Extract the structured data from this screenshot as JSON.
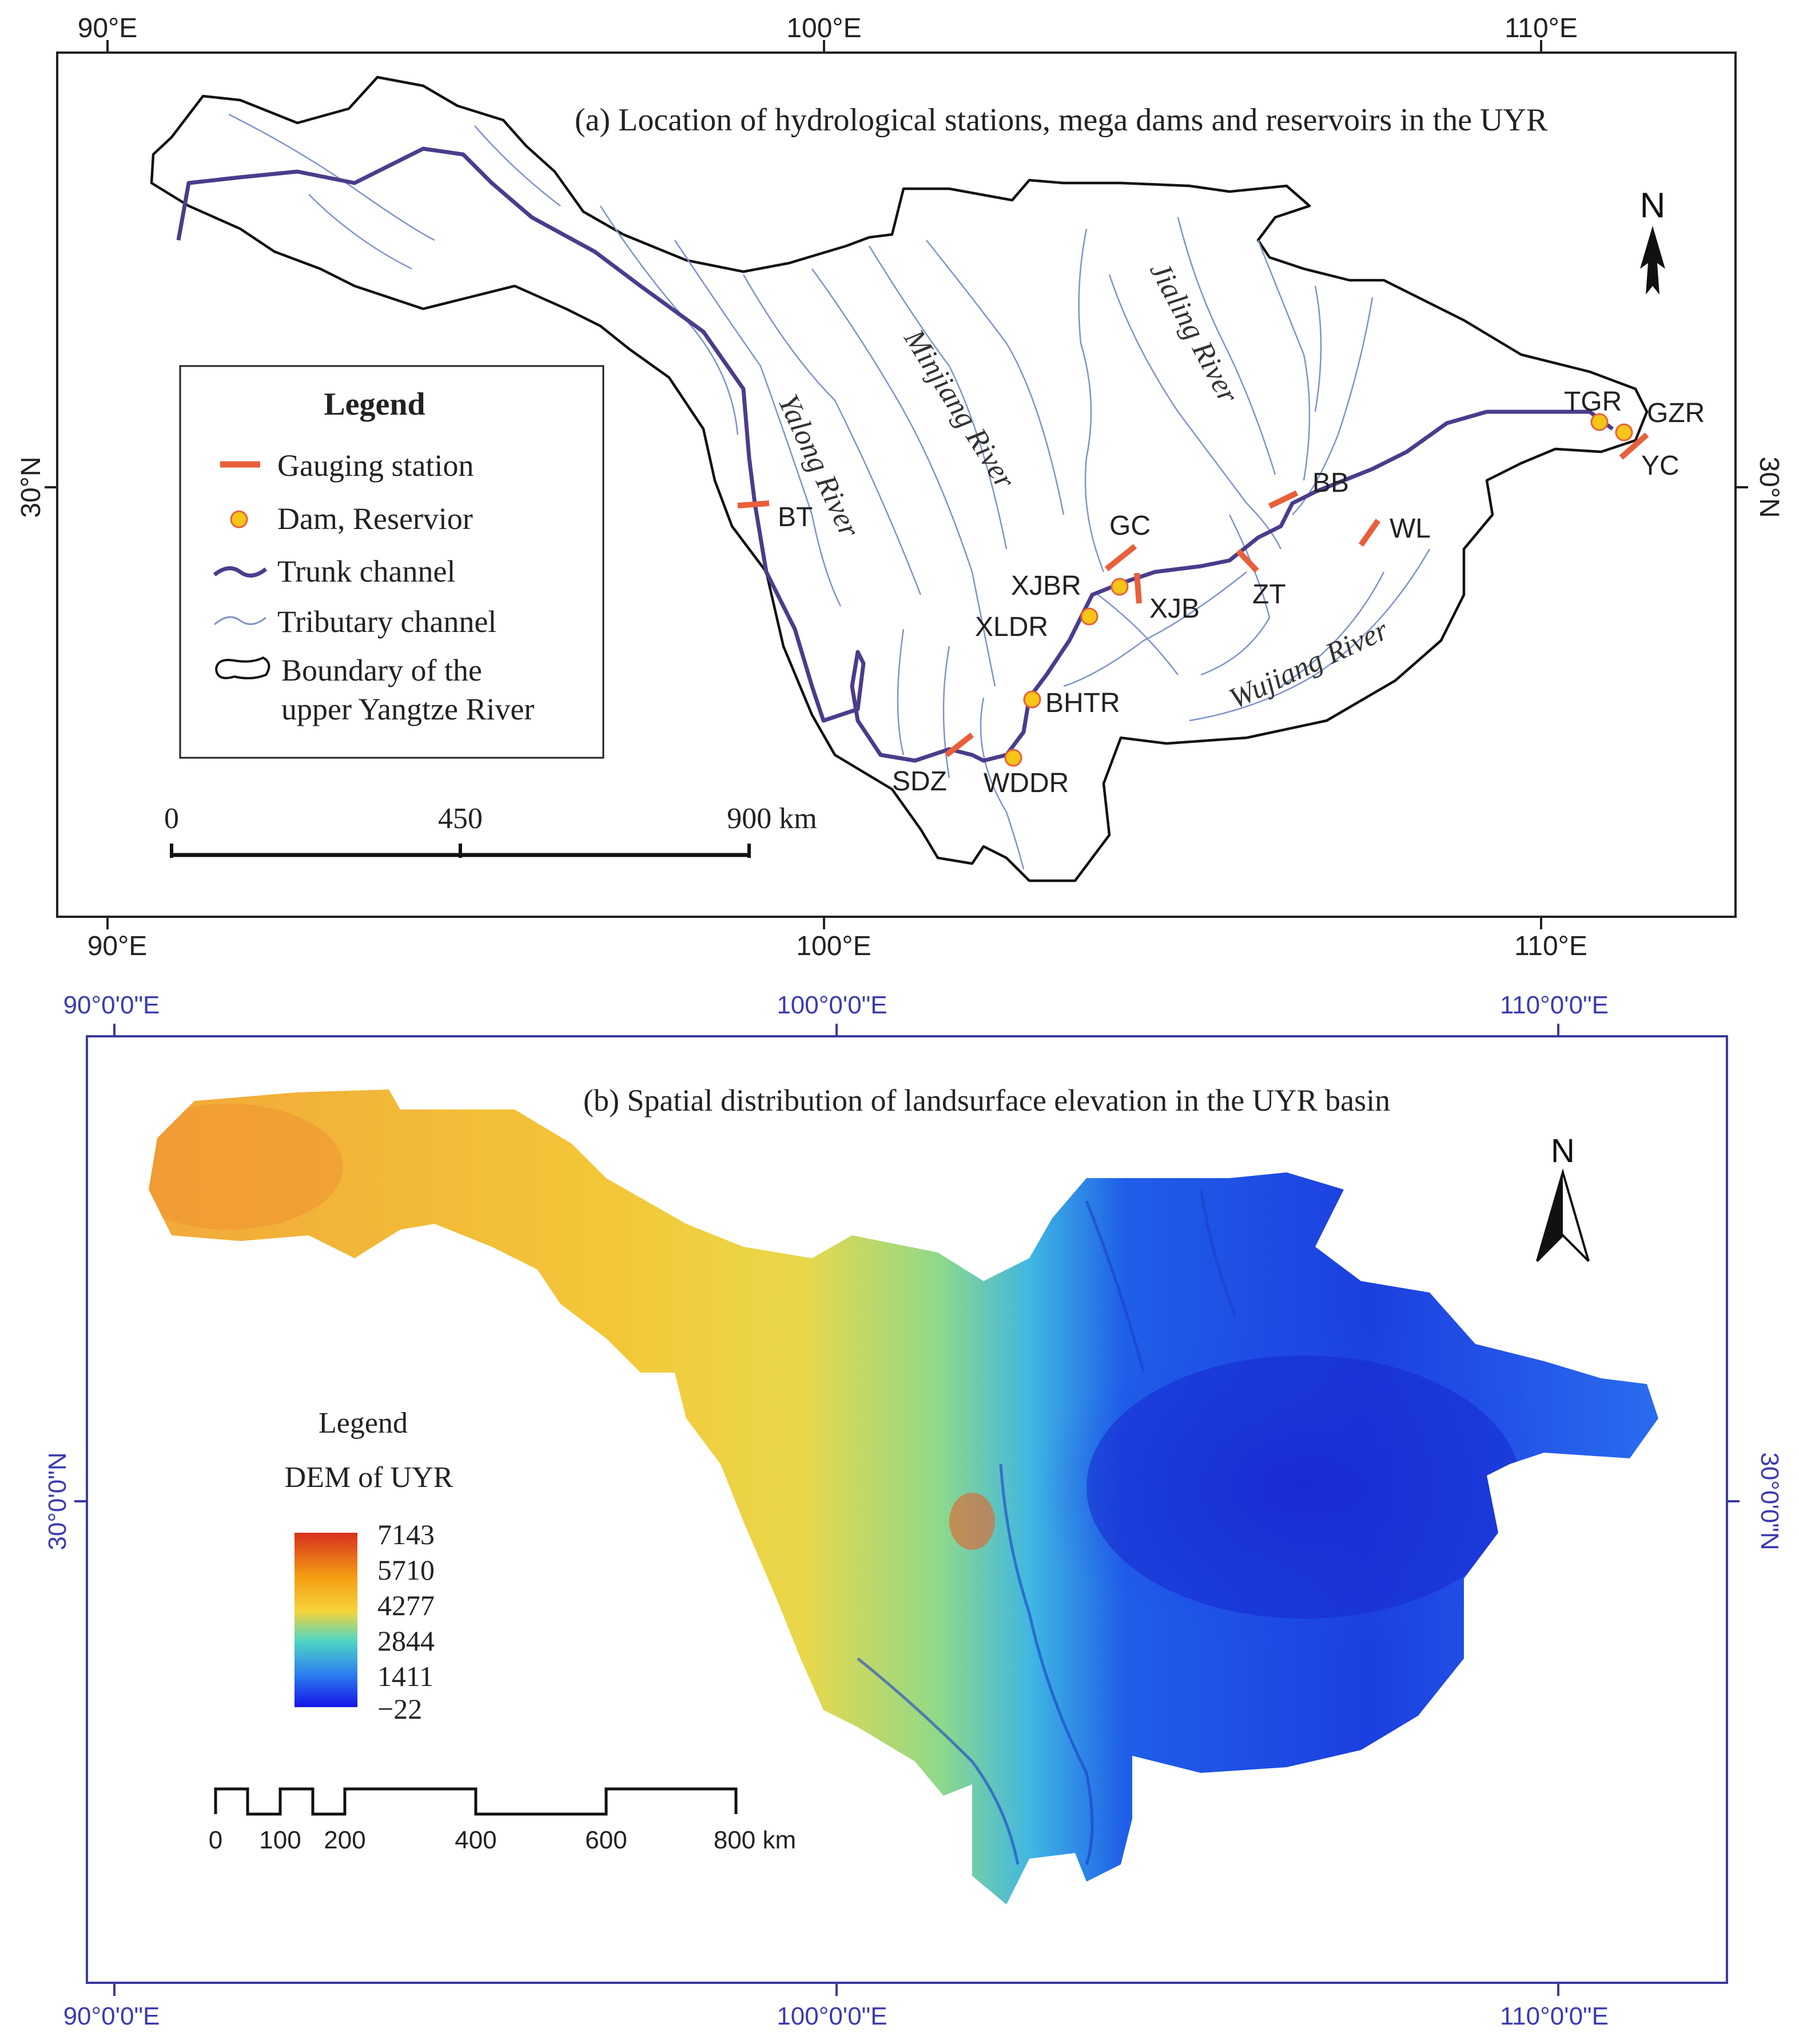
{
  "panel_a": {
    "title": "(a) Location of hydrological stations, mega dams and reservoirs in the UYR",
    "lon_labels": [
      "90°E",
      "100°E",
      "110°E"
    ],
    "lat_label": "30°N",
    "north_label": "N",
    "legend": {
      "title": "Legend",
      "items": [
        {
          "label": "Gauging station",
          "symbol": "gauging-station",
          "color": "#e8603a"
        },
        {
          "label": "Dam, Reservior",
          "symbol": "dam",
          "color": "#f5c518"
        },
        {
          "label": "Trunk channel",
          "symbol": "trunk",
          "color": "#4b3c8c"
        },
        {
          "label": "Tributary channel",
          "symbol": "tributary",
          "color": "#7e93c9"
        },
        {
          "label": "Boundary of the",
          "label2": "upper Yangtze River",
          "symbol": "boundary",
          "color": "#000000"
        }
      ]
    },
    "rivers": {
      "yalong": "Yalong River",
      "minjiang": "Minjiang River",
      "jialing": "Jialing River",
      "wujiang": "Wujiang River"
    },
    "stations": [
      "BT",
      "GC",
      "XJB",
      "ZT",
      "BB",
      "WL",
      "SDZ",
      "YC"
    ],
    "dams": [
      "XJBR",
      "XLDR",
      "BHTR",
      "WDDR",
      "TGR",
      "GZR"
    ],
    "scale": {
      "ticks": [
        "0",
        "450",
        "900 km"
      ]
    }
  },
  "panel_b": {
    "title": "(b) Spatial distribution of landsurface elevation in the UYR basin",
    "lon_labels": [
      "90°0'0\"E",
      "100°0'0\"E",
      "110°0'0\"E"
    ],
    "lat_label": "30°0'0\"N",
    "north_label": "N",
    "legend": {
      "title": "Legend",
      "subtitle": "DEM of UYR",
      "values": [
        "7143",
        "5710",
        "4277",
        "2844",
        "1411",
        "−22"
      ],
      "colors": [
        "#d7301f",
        "#f39c12",
        "#f7d33a",
        "#4fd6c4",
        "#2b7bf0",
        "#1414e6"
      ]
    },
    "scale": {
      "ticks": [
        "0",
        "100",
        "200",
        "400",
        "600",
        "800 km"
      ]
    }
  }
}
